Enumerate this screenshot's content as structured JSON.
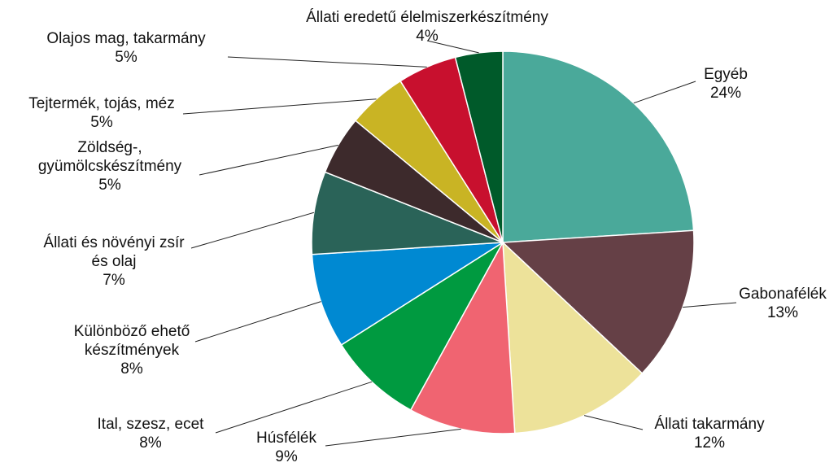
{
  "chart_data": {
    "type": "pie",
    "categories": [
      "Egyéb",
      "Gabonafélék",
      "Állati takarmány",
      "Húsfélék",
      "Ital, szesz, ecet",
      "Különböző ehető készítmények",
      "Állati és növényi zsír és olaj",
      "Zöldség-, gyümölcskészítmény",
      "Tejtermék, tojás, méz",
      "Olajos mag, takarmány",
      "Állati eredetű élelmiszerkészítmény"
    ],
    "values": [
      24,
      13,
      12,
      9,
      8,
      8,
      7,
      5,
      5,
      5,
      4
    ],
    "value_labels": [
      "24%",
      "13%",
      "12%",
      "9%",
      "8%",
      "8%",
      "7%",
      "5%",
      "5%",
      "5%",
      "4%"
    ],
    "colors": [
      "#4aa99a",
      "#654046",
      "#ede29a",
      "#f06471",
      "#009a40",
      "#0089d2",
      "#2a6358",
      "#3d2a2c",
      "#c9b424",
      "#c8102e",
      "#005a2a"
    ]
  }
}
